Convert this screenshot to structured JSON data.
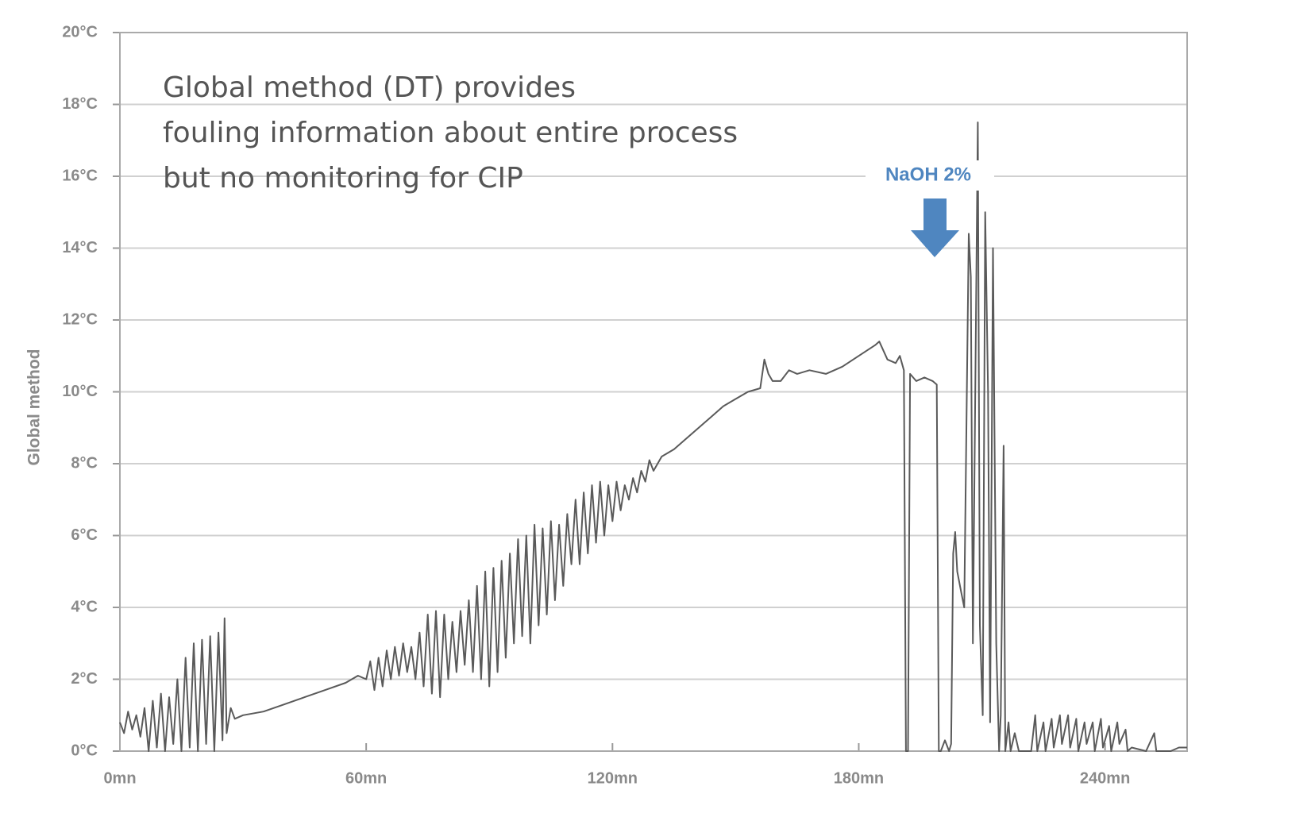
{
  "chart_data": {
    "type": "line",
    "ylabel": "Global method",
    "annotations": [
      "Global method (DT) provides",
      "fouling information about entire process",
      "but no monitoring for CIP"
    ],
    "marker_label": "NaOH 2%",
    "marker_color": "#4f86c0",
    "color": "#5a5a5a",
    "grid": true,
    "xlim": [
      0,
      260
    ],
    "ylim": [
      0,
      20
    ],
    "xticks": [
      {
        "value": 0,
        "label": "0mn"
      },
      {
        "value": 60,
        "label": "60mn"
      },
      {
        "value": 120,
        "label": "120mn"
      },
      {
        "value": 180,
        "label": "180mn"
      },
      {
        "value": 240,
        "label": "240mn"
      }
    ],
    "yticks": [
      {
        "value": 0,
        "label": "0°C"
      },
      {
        "value": 2,
        "label": "2°C"
      },
      {
        "value": 4,
        "label": "4°C"
      },
      {
        "value": 6,
        "label": "6°C"
      },
      {
        "value": 8,
        "label": "8°C"
      },
      {
        "value": 10,
        "label": "10°C"
      },
      {
        "value": 12,
        "label": "12°C"
      },
      {
        "value": 14,
        "label": "14°C"
      },
      {
        "value": 16,
        "label": "16°C"
      },
      {
        "value": 18,
        "label": "18°C"
      },
      {
        "value": 20,
        "label": "20°C"
      }
    ],
    "x": [
      0,
      1,
      2,
      3,
      4,
      5,
      6,
      7,
      8,
      9,
      10,
      11,
      12,
      13,
      14,
      15,
      16,
      17,
      18,
      19,
      20,
      21,
      22,
      23,
      24,
      25,
      25.5,
      26,
      27,
      28,
      30,
      35,
      40,
      45,
      50,
      55,
      58,
      60,
      61,
      62,
      63,
      64,
      65,
      66,
      67,
      68,
      69,
      70,
      71,
      72,
      73,
      74,
      75,
      76,
      77,
      78,
      79,
      80,
      81,
      82,
      83,
      84,
      85,
      86,
      87,
      88,
      89,
      90,
      91,
      92,
      93,
      94,
      95,
      96,
      97,
      98,
      99,
      100,
      101,
      102,
      103,
      104,
      105,
      106,
      107,
      108,
      109,
      110,
      111,
      112,
      113,
      114,
      115,
      116,
      117,
      118,
      119,
      120,
      121,
      122,
      123,
      124,
      125,
      126,
      127,
      128,
      129,
      130,
      132,
      135,
      138,
      141,
      144,
      147,
      150,
      153,
      156,
      157,
      158,
      159,
      161,
      163,
      165,
      168,
      172,
      176,
      180,
      184,
      185,
      187,
      189,
      190,
      191,
      191.5,
      192,
      192.5,
      194,
      196,
      198,
      199,
      199.5,
      200,
      201,
      202,
      202.5,
      203,
      203.5,
      204,
      205,
      205.7,
      206.8,
      207.3,
      207.8,
      209,
      209.5,
      210.2,
      210.8,
      211.5,
      212,
      212.7,
      213.5,
      214.2,
      214.6,
      215.3,
      215.7,
      216.5,
      217,
      218,
      219,
      222,
      223,
      223.5,
      225,
      225.5,
      227,
      227.5,
      229,
      229.5,
      231,
      231.5,
      233,
      233.5,
      235,
      235.5,
      237,
      237.5,
      239,
      239.5,
      241,
      241.5,
      243,
      243.5,
      245,
      245.5,
      246.5,
      250,
      252,
      252.5,
      256,
      258,
      260
    ],
    "values": [
      0.8,
      0.5,
      1.1,
      0.6,
      1.0,
      0.4,
      1.2,
      0,
      1.4,
      0.1,
      1.6,
      0,
      1.5,
      0.2,
      2.0,
      0,
      2.6,
      0.1,
      3.0,
      0,
      3.1,
      0.2,
      3.2,
      0,
      3.3,
      0.3,
      3.7,
      0.5,
      1.2,
      0.9,
      1.0,
      1.1,
      1.3,
      1.5,
      1.7,
      1.9,
      2.1,
      2.0,
      2.5,
      1.7,
      2.6,
      1.8,
      2.8,
      2.0,
      2.9,
      2.1,
      3.0,
      2.2,
      2.9,
      2.0,
      3.3,
      1.8,
      3.8,
      1.6,
      3.9,
      1.5,
      3.8,
      2.0,
      3.6,
      2.2,
      3.9,
      2.4,
      4.2,
      2.2,
      4.6,
      2.0,
      5.0,
      1.8,
      5.1,
      2.2,
      5.3,
      2.6,
      5.5,
      3.0,
      5.9,
      3.2,
      6.0,
      3.0,
      6.3,
      3.5,
      6.2,
      3.8,
      6.4,
      4.2,
      6.3,
      4.6,
      6.6,
      5.2,
      7.0,
      5.2,
      7.2,
      5.5,
      7.4,
      5.8,
      7.5,
      6.0,
      7.4,
      6.4,
      7.5,
      6.7,
      7.4,
      7.0,
      7.6,
      7.2,
      7.8,
      7.5,
      8.1,
      7.8,
      8.2,
      8.4,
      8.7,
      9.0,
      9.3,
      9.6,
      9.8,
      10.0,
      10.1,
      10.9,
      10.5,
      10.3,
      10.3,
      10.6,
      10.5,
      10.6,
      10.5,
      10.7,
      11.0,
      11.3,
      11.4,
      10.9,
      10.8,
      11.0,
      10.6,
      0,
      0,
      10.5,
      10.3,
      10.4,
      10.3,
      10.2,
      0,
      0,
      0.3,
      0,
      0.2,
      5.5,
      6.1,
      5.0,
      4.4,
      4.0,
      14.4,
      13.2,
      3.0,
      17.5,
      3.5,
      1.0,
      15.0,
      10,
      0.8,
      14.0,
      3,
      0,
      1.0,
      8.5,
      0,
      0.8,
      0,
      0.5,
      0,
      0,
      1.0,
      0,
      0.8,
      0,
      0.9,
      0.1,
      1.0,
      0.2,
      1.0,
      0.1,
      0.9,
      0,
      0.8,
      0.2,
      0.8,
      0,
      0.9,
      0.1,
      0.7,
      0,
      0.8,
      0.2,
      0.6,
      0,
      0.1,
      0,
      0.5,
      0,
      0,
      0.1,
      0.1
    ]
  }
}
